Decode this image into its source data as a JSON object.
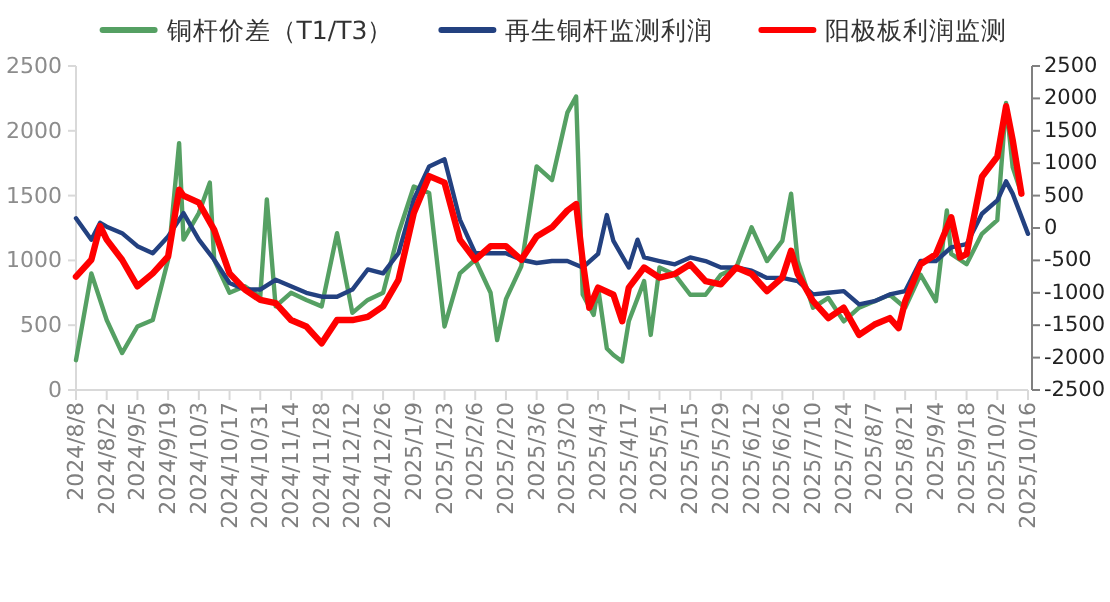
{
  "chart_data": {
    "type": "line",
    "legend": "top",
    "grid": false,
    "xlim": [
      "2024-08-08",
      "2025-10-16"
    ],
    "xticks": [
      {
        "value": "2024-08-08",
        "label": "2024/8/8"
      },
      {
        "value": "2024-08-22",
        "label": "2024/8/22"
      },
      {
        "value": "2024-09-05",
        "label": "2024/9/5"
      },
      {
        "value": "2024-09-19",
        "label": "2024/9/19"
      },
      {
        "value": "2024-10-03",
        "label": "2024/10/3"
      },
      {
        "value": "2024-10-17",
        "label": "2024/10/17"
      },
      {
        "value": "2024-10-31",
        "label": "2024/10/31"
      },
      {
        "value": "2024-11-14",
        "label": "2024/11/14"
      },
      {
        "value": "2024-11-28",
        "label": "2024/11/28"
      },
      {
        "value": "2024-12-12",
        "label": "2024/12/12"
      },
      {
        "value": "2024-12-26",
        "label": "2024/12/26"
      },
      {
        "value": "2025-01-09",
        "label": "2025/1/9"
      },
      {
        "value": "2025-01-23",
        "label": "2025/1/23"
      },
      {
        "value": "2025-02-06",
        "label": "2025/2/6"
      },
      {
        "value": "2025-02-20",
        "label": "2025/2/20"
      },
      {
        "value": "2025-03-06",
        "label": "2025/3/6"
      },
      {
        "value": "2025-03-20",
        "label": "2025/3/20"
      },
      {
        "value": "2025-04-03",
        "label": "2025/4/3"
      },
      {
        "value": "2025-04-17",
        "label": "2025/4/17"
      },
      {
        "value": "2025-05-01",
        "label": "2025/5/1"
      },
      {
        "value": "2025-05-15",
        "label": "2025/5/15"
      },
      {
        "value": "2025-05-29",
        "label": "2025/5/29"
      },
      {
        "value": "2025-06-12",
        "label": "2025/6/12"
      },
      {
        "value": "2025-06-26",
        "label": "2025/6/26"
      },
      {
        "value": "2025-07-10",
        "label": "2025/7/10"
      },
      {
        "value": "2025-07-24",
        "label": "2025/7/24"
      },
      {
        "value": "2025-08-07",
        "label": "2025/8/7"
      },
      {
        "value": "2025-08-21",
        "label": "2025/8/21"
      },
      {
        "value": "2025-09-04",
        "label": "2025/9/4"
      },
      {
        "value": "2025-09-18",
        "label": "2025/9/18"
      },
      {
        "value": "2025-10-02",
        "label": "2025/10/2"
      },
      {
        "value": "2025-10-16",
        "label": "2025/10/16"
      }
    ],
    "ylim": [
      0,
      2500
    ],
    "yticks": [
      0,
      500,
      1000,
      1500,
      2000,
      2500
    ],
    "y2lim": [
      -2500,
      2500
    ],
    "y2ticks": [
      -2500,
      -2000,
      -1500,
      -1000,
      -500,
      0,
      500,
      1000,
      1500,
      2000,
      2500
    ],
    "series": [
      {
        "name": "铜杆价差（T1/T3）",
        "color": "#55a063",
        "x": [
          "2024-08-08",
          "2024-08-15",
          "2024-08-22",
          "2024-08-29",
          "2024-09-05",
          "2024-09-12",
          "2024-09-19",
          "2024-09-24",
          "2024-09-26",
          "2024-10-03",
          "2024-10-08",
          "2024-10-10",
          "2024-10-17",
          "2024-10-24",
          "2024-10-31",
          "2024-11-03",
          "2024-11-07",
          "2024-11-14",
          "2024-11-21",
          "2024-11-28",
          "2024-12-05",
          "2024-12-12",
          "2024-12-19",
          "2024-12-26",
          "2025-01-02",
          "2025-01-09",
          "2025-01-16",
          "2025-01-23",
          "2025-01-30",
          "2025-02-06",
          "2025-02-13",
          "2025-02-16",
          "2025-02-20",
          "2025-02-27",
          "2025-03-06",
          "2025-03-13",
          "2025-03-20",
          "2025-03-24",
          "2025-03-27",
          "2025-04-01",
          "2025-04-03",
          "2025-04-07",
          "2025-04-10",
          "2025-04-14",
          "2025-04-17",
          "2025-04-24",
          "2025-04-27",
          "2025-05-01",
          "2025-05-08",
          "2025-05-15",
          "2025-05-22",
          "2025-05-29",
          "2025-06-05",
          "2025-06-12",
          "2025-06-19",
          "2025-06-26",
          "2025-06-30",
          "2025-07-03",
          "2025-07-10",
          "2025-07-17",
          "2025-07-24",
          "2025-07-31",
          "2025-08-07",
          "2025-08-14",
          "2025-08-21",
          "2025-08-28",
          "2025-09-04",
          "2025-09-09",
          "2025-09-11",
          "2025-09-18",
          "2025-09-25",
          "2025-10-02",
          "2025-10-06",
          "2025-10-09",
          "2025-10-13"
        ],
        "values": [
          230,
          900,
          540,
          285,
          490,
          540,
          1005,
          1905,
          1160,
          1365,
          1600,
          1005,
          750,
          800,
          720,
          1470,
          645,
          750,
          695,
          645,
          1210,
          595,
          695,
          750,
          1210,
          1570,
          1520,
          490,
          900,
          1005,
          750,
          385,
          700,
          955,
          1725,
          1620,
          2140,
          2265,
          737,
          580,
          790,
          320,
          270,
          220,
          530,
          840,
          425,
          945,
          890,
          735,
          735,
          890,
          945,
          1255,
          995,
          1150,
          1515,
          995,
          635,
          710,
          530,
          635,
          685,
          735,
          635,
          890,
          685,
          1385,
          1050,
          970,
          1205,
          1310,
          2215,
          1720,
          1515
        ]
      },
      {
        "name": "再生铜杆监测利润",
        "color": "#234180",
        "axis": "y2",
        "x": [
          "2024-08-08",
          "2024-08-15",
          "2024-08-19",
          "2024-08-22",
          "2024-08-29",
          "2024-09-05",
          "2024-09-12",
          "2024-09-19",
          "2024-09-26",
          "2024-10-03",
          "2024-10-10",
          "2024-10-17",
          "2024-10-24",
          "2024-10-31",
          "2024-11-07",
          "2024-11-14",
          "2024-11-21",
          "2024-11-28",
          "2024-12-05",
          "2024-12-12",
          "2024-12-19",
          "2024-12-26",
          "2025-01-02",
          "2025-01-09",
          "2025-01-16",
          "2025-01-23",
          "2025-01-30",
          "2025-02-06",
          "2025-02-13",
          "2025-02-20",
          "2025-02-27",
          "2025-03-06",
          "2025-03-13",
          "2025-03-20",
          "2025-03-27",
          "2025-04-03",
          "2025-04-07",
          "2025-04-10",
          "2025-04-17",
          "2025-04-21",
          "2025-04-24",
          "2025-05-01",
          "2025-05-08",
          "2025-05-15",
          "2025-05-22",
          "2025-05-29",
          "2025-06-05",
          "2025-06-12",
          "2025-06-19",
          "2025-06-26",
          "2025-07-03",
          "2025-07-10",
          "2025-07-17",
          "2025-07-24",
          "2025-07-31",
          "2025-08-07",
          "2025-08-14",
          "2025-08-21",
          "2025-08-28",
          "2025-09-04",
          "2025-09-11",
          "2025-09-18",
          "2025-09-25",
          "2025-10-02",
          "2025-10-06",
          "2025-10-09",
          "2025-10-16"
        ],
        "values": [
          150,
          -180,
          80,
          20,
          -80,
          -280,
          -390,
          -130,
          230,
          -180,
          -490,
          -850,
          -950,
          -950,
          -800,
          -900,
          -1000,
          -1060,
          -1060,
          -950,
          -640,
          -700,
          -390,
          440,
          950,
          1060,
          130,
          -390,
          -390,
          -390,
          -490,
          -540,
          -510,
          -510,
          -610,
          -400,
          200,
          -200,
          -610,
          -180,
          -455,
          -510,
          -560,
          -455,
          -510,
          -610,
          -610,
          -660,
          -770,
          -770,
          -820,
          -1025,
          -1000,
          -975,
          -1180,
          -1130,
          -1025,
          -975,
          -510,
          -510,
          -300,
          -250,
          220,
          425,
          720,
          530,
          -90
        ]
      },
      {
        "name": "阳极板利润监测",
        "color": "#ff0000",
        "axis": "y2",
        "x": [
          "2024-08-08",
          "2024-08-15",
          "2024-08-19",
          "2024-08-22",
          "2024-08-29",
          "2024-09-05",
          "2024-09-12",
          "2024-09-19",
          "2024-09-24",
          "2024-09-26",
          "2024-10-03",
          "2024-10-10",
          "2024-10-17",
          "2024-10-24",
          "2024-10-31",
          "2024-11-07",
          "2024-11-14",
          "2024-11-21",
          "2024-11-28",
          "2024-12-05",
          "2024-12-12",
          "2024-12-19",
          "2024-12-26",
          "2025-01-02",
          "2025-01-09",
          "2025-01-16",
          "2025-01-23",
          "2025-01-30",
          "2025-02-06",
          "2025-02-13",
          "2025-02-20",
          "2025-02-27",
          "2025-03-06",
          "2025-03-13",
          "2025-03-20",
          "2025-03-24",
          "2025-03-27",
          "2025-03-30",
          "2025-04-03",
          "2025-04-10",
          "2025-04-14",
          "2025-04-17",
          "2025-04-24",
          "2025-05-01",
          "2025-05-08",
          "2025-05-15",
          "2025-05-22",
          "2025-05-29",
          "2025-06-05",
          "2025-06-12",
          "2025-06-19",
          "2025-06-26",
          "2025-06-30",
          "2025-07-03",
          "2025-07-10",
          "2025-07-17",
          "2025-07-24",
          "2025-07-31",
          "2025-08-07",
          "2025-08-14",
          "2025-08-18",
          "2025-08-21",
          "2025-08-28",
          "2025-09-04",
          "2025-09-11",
          "2025-09-15",
          "2025-09-18",
          "2025-09-25",
          "2025-10-02",
          "2025-10-06",
          "2025-10-09",
          "2025-10-13"
        ],
        "values": [
          -750,
          -490,
          30,
          -180,
          -490,
          -900,
          -700,
          -440,
          590,
          500,
          390,
          -30,
          -700,
          -950,
          -1110,
          -1160,
          -1420,
          -1520,
          -1780,
          -1420,
          -1420,
          -1370,
          -1210,
          -800,
          230,
          800,
          700,
          -180,
          -490,
          -280,
          -280,
          -490,
          -130,
          10,
          270,
          370,
          -510,
          -1230,
          -920,
          -1030,
          -1440,
          -920,
          -610,
          -765,
          -710,
          -560,
          -820,
          -870,
          -610,
          -710,
          -975,
          -765,
          -350,
          -710,
          -1130,
          -1390,
          -1230,
          -1650,
          -1490,
          -1390,
          -1545,
          -1130,
          -560,
          -405,
          165,
          -455,
          -405,
          790,
          1100,
          1880,
          1360,
          530
        ]
      }
    ]
  }
}
